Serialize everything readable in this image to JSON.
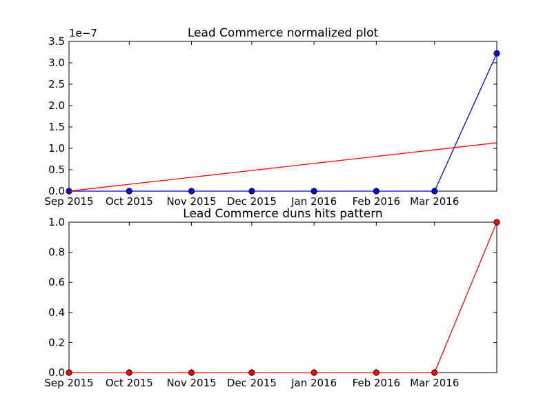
{
  "chart_data": [
    {
      "type": "line",
      "title": "Lead Commerce normalized plot",
      "xlabel": "",
      "ylabel": "",
      "y_offset_label": "1e−7",
      "x_tick_labels": [
        "Sep 2015",
        "Oct 2015",
        "Nov 2015",
        "Dec 2015",
        "Jan 2016",
        "Feb 2016",
        "Mar 2016"
      ],
      "y_tick_labels": [
        "0.0",
        "0.5",
        "1.0",
        "1.5",
        "2.0",
        "2.5",
        "3.0",
        "3.5"
      ],
      "ylim": [
        0,
        3.5e-07
      ],
      "xlim": [
        "2015-09-01",
        "2016-04-01"
      ],
      "grid": false,
      "series": [
        {
          "color": "#0000ff",
          "marker": "circle",
          "points": [
            {
              "x": "2015-09-01",
              "y": 0
            },
            {
              "x": "2015-10-01",
              "y": 0
            },
            {
              "x": "2015-11-01",
              "y": 0
            },
            {
              "x": "2015-12-01",
              "y": 0
            },
            {
              "x": "2016-01-01",
              "y": 0
            },
            {
              "x": "2016-02-01",
              "y": 0
            },
            {
              "x": "2016-03-01",
              "y": 0
            },
            {
              "x": "2016-04-01",
              "y": 3.22e-07
            }
          ]
        },
        {
          "color": "#ff0000",
          "marker": "none",
          "points": [
            {
              "x": "2015-09-01",
              "y": 0
            },
            {
              "x": "2016-04-01",
              "y": 1.13e-07
            }
          ]
        }
      ]
    },
    {
      "type": "line",
      "title": "Lead Commerce duns hits pattern",
      "xlabel": "",
      "ylabel": "",
      "x_tick_labels": [
        "Sep 2015",
        "Oct 2015",
        "Nov 2015",
        "Dec 2015",
        "Jan 2016",
        "Feb 2016",
        "Mar 2016"
      ],
      "y_tick_labels": [
        "0.0",
        "0.2",
        "0.4",
        "0.6",
        "0.8",
        "1.0"
      ],
      "ylim": [
        0,
        1.0
      ],
      "xlim": [
        "2015-09-01",
        "2016-04-01"
      ],
      "grid": false,
      "series": [
        {
          "color": "#ff0000",
          "marker": "circle",
          "points": [
            {
              "x": "2015-09-01",
              "y": 0
            },
            {
              "x": "2015-10-01",
              "y": 0
            },
            {
              "x": "2015-11-01",
              "y": 0
            },
            {
              "x": "2015-12-01",
              "y": 0
            },
            {
              "x": "2016-01-01",
              "y": 0
            },
            {
              "x": "2016-02-01",
              "y": 0
            },
            {
              "x": "2016-03-01",
              "y": 0
            },
            {
              "x": "2016-04-01",
              "y": 1.0
            }
          ]
        }
      ]
    }
  ]
}
